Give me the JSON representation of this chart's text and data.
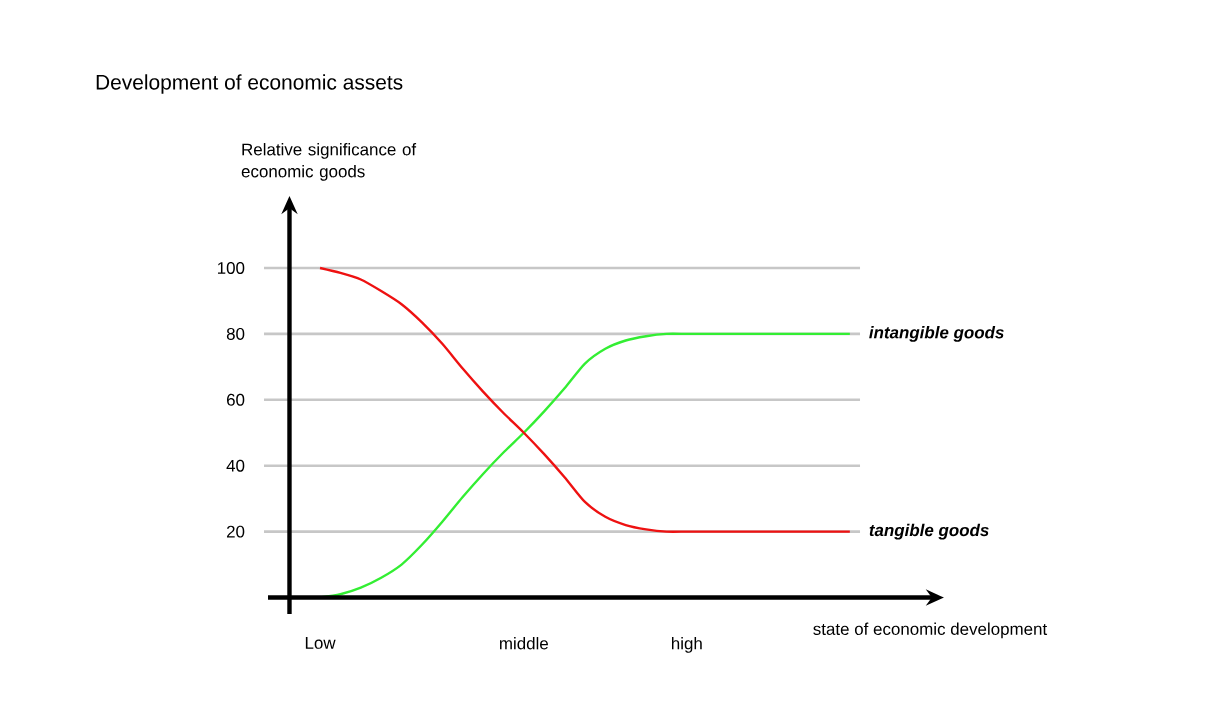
{
  "chart_data": {
    "type": "line",
    "title": "Development of economic assets",
    "xlabel": "state of economic development",
    "ylabel": "Relative significance of economic goods",
    "categories": [
      "Low",
      null,
      null,
      null,
      null,
      null,
      null,
      null,
      null,
      null,
      "middle",
      null,
      null,
      null,
      null,
      null,
      null,
      null,
      "high",
      null,
      null,
      null,
      null,
      null,
      null,
      null,
      null
    ],
    "ylim": [
      -5,
      100
    ],
    "yticks": [
      20,
      40,
      60,
      80,
      100
    ],
    "grid": "y",
    "marker": "none",
    "line_style": "solid",
    "series": [
      {
        "name": "intangible goods",
        "color": "#33ee33",
        "values": [
          0,
          1,
          3,
          6,
          10,
          16,
          23,
          30.5,
          37.5,
          44,
          50,
          56.5,
          63.5,
          71,
          75.5,
          78,
          79.3,
          80,
          80,
          80,
          80,
          80,
          80,
          80,
          80,
          80,
          80
        ]
      },
      {
        "name": "tangible goods",
        "color": "#ee1111",
        "values": [
          100,
          98.5,
          96.5,
          93,
          89,
          83.5,
          77,
          69.5,
          62.5,
          56,
          50,
          43.5,
          36.5,
          29,
          24.5,
          22,
          20.7,
          20,
          20,
          20,
          20,
          20,
          20,
          20,
          20,
          20,
          20
        ]
      }
    ]
  }
}
